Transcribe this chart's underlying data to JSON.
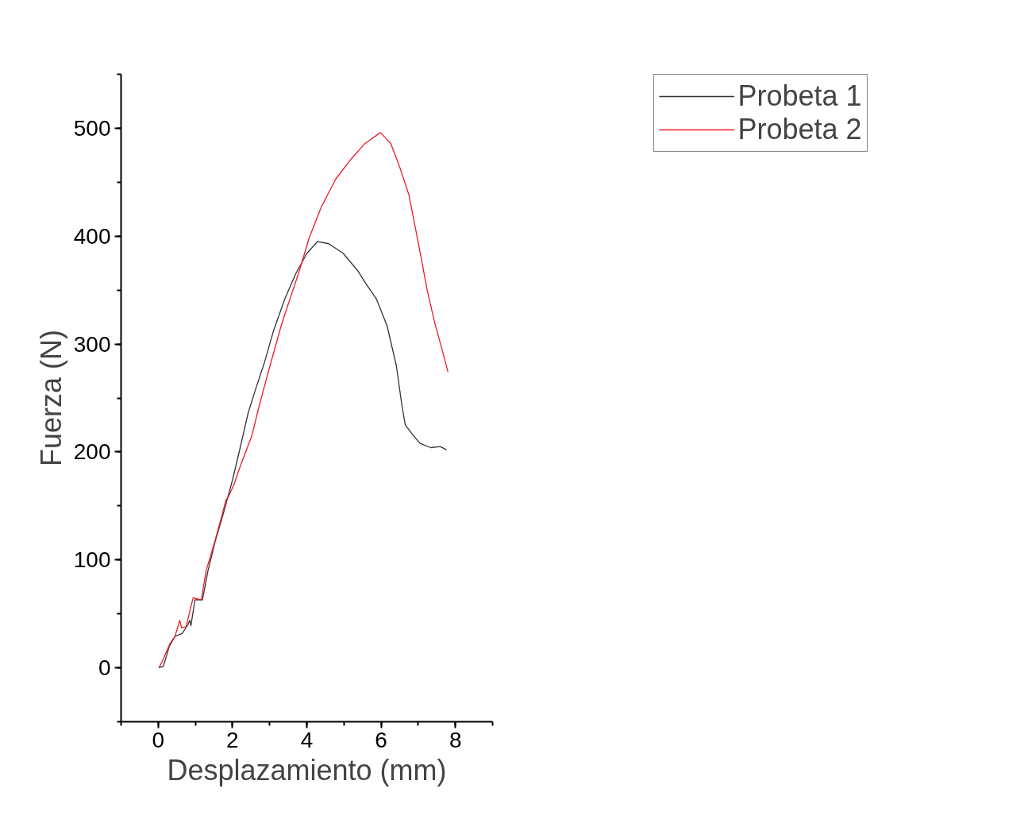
{
  "chart_data": {
    "type": "line",
    "xlabel": "Desplazamiento (mm)",
    "ylabel": "Fuerza (N)",
    "xlim": [
      -1,
      9
    ],
    "ylim": [
      -50,
      550
    ],
    "xticks": [
      0,
      2,
      4,
      6,
      8
    ],
    "yticks": [
      0,
      100,
      200,
      300,
      400,
      500
    ],
    "grid": false,
    "legend": "top right",
    "marker": "none",
    "line_style": "solid",
    "series": [
      {
        "name": "Probeta 1",
        "color": "#333333",
        "x": [
          0.02,
          0.14,
          0.3,
          0.45,
          0.65,
          0.8,
          0.85,
          0.88,
          0.99,
          1.19,
          1.34,
          1.54,
          1.73,
          2.0,
          2.22,
          2.42,
          2.62,
          2.86,
          3.11,
          3.41,
          3.7,
          4.0,
          4.29,
          4.59,
          4.98,
          5.37,
          5.57,
          5.87,
          6.16,
          6.41,
          6.56,
          6.65,
          6.85,
          7.05,
          7.34,
          7.59,
          7.76
        ],
        "values": [
          0,
          1.5,
          20,
          29,
          32,
          40,
          44,
          39,
          63,
          63,
          90,
          118,
          140,
          174,
          206,
          236,
          258,
          283,
          313,
          342,
          365,
          384,
          395,
          393,
          384,
          368,
          357,
          342,
          317,
          280,
          243,
          225,
          216,
          208,
          204,
          205,
          202
        ]
      },
      {
        "name": "Probeta 2",
        "color": "#ee1c24",
        "x": [
          0.02,
          0.11,
          0.31,
          0.45,
          0.58,
          0.63,
          0.75,
          0.94,
          1.16,
          1.29,
          1.54,
          1.83,
          1.88,
          2.03,
          2.22,
          2.52,
          2.72,
          3.01,
          3.31,
          3.5,
          3.52,
          3.8,
          4.06,
          4.39,
          4.78,
          5.18,
          5.57,
          5.98,
          6.26,
          6.5,
          6.75,
          7.0,
          7.24,
          7.44,
          7.64,
          7.8
        ],
        "values": [
          0,
          6,
          22,
          29,
          44,
          37,
          38,
          65,
          63,
          90,
          119,
          156,
          158,
          169,
          188,
          215,
          243,
          280,
          317,
          337,
          339,
          368,
          398,
          427,
          453,
          471,
          486,
          496,
          486,
          464,
          438,
          394,
          350,
          320,
          295,
          274
        ]
      }
    ]
  }
}
